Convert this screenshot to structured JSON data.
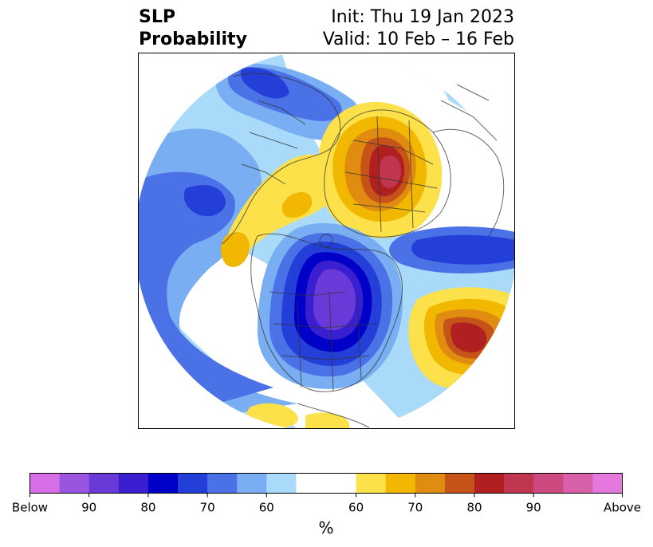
{
  "title": {
    "left_line1": "SLP",
    "left_line2": "Probability",
    "right_line1": "Init: Thu 19 Jan 2023",
    "right_line2": "Valid: 10 Feb – 16 Feb"
  },
  "colorbar": {
    "unit_label": "%",
    "below_colors": [
      "#d66ee6",
      "#9a55e0",
      "#6a3ad8",
      "#3a1fd0",
      "#0000c8",
      "#233fd8",
      "#4a72e6",
      "#79aef2",
      "#aadafa"
    ],
    "neutral_color": "#ffffff",
    "above_colors": [
      "#fde14a",
      "#f2b700",
      "#e08c10",
      "#c65418",
      "#b02020",
      "#c03550",
      "#cc4a80",
      "#d860a8",
      "#e478dc"
    ],
    "tick_labels": [
      "Below",
      "90",
      "80",
      "70",
      "60",
      "60",
      "70",
      "80",
      "90",
      "Above"
    ]
  },
  "map": {
    "projection": "north-polar-stereographic",
    "features": [
      "coastlines",
      "country-borders",
      "state-borders"
    ],
    "anomalies": [
      {
        "region": "Northern Canada / Central North America",
        "sign": "below",
        "peak": "90"
      },
      {
        "region": "North Atlantic",
        "sign": "above",
        "peak": "80"
      },
      {
        "region": "Eastern Siberia / Arctic",
        "sign": "above",
        "peak": "80"
      },
      {
        "region": "North Pacific / Alaska",
        "sign": "below",
        "peak": "70"
      },
      {
        "region": "Western Europe / Scandinavia",
        "sign": "below",
        "peak": "70"
      }
    ]
  }
}
